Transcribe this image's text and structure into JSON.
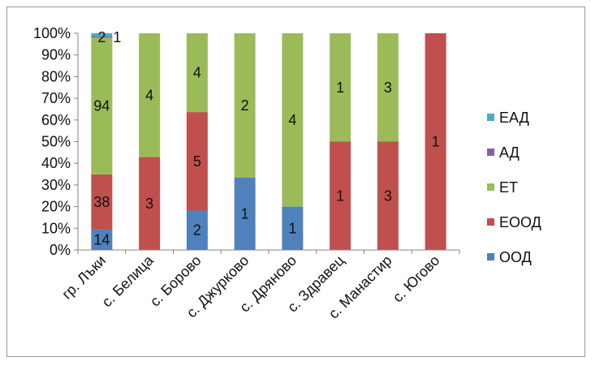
{
  "chart_data": {
    "type": "bar",
    "stacked": "percent",
    "categories": [
      "гр. Лъки",
      "с. Белица",
      "с. Борово",
      "с. Джурково",
      "с. Дряново",
      "с. Здравец",
      "с. Манастир",
      "с. Югово"
    ],
    "series": [
      {
        "name": "ООД",
        "color": "#4f81bd",
        "values": [
          14,
          0,
          2,
          1,
          1,
          0,
          0,
          0
        ]
      },
      {
        "name": "ЕООД",
        "color": "#c0504d",
        "values": [
          38,
          3,
          5,
          0,
          0,
          1,
          3,
          1
        ]
      },
      {
        "name": "ЕТ",
        "color": "#9bbb59",
        "values": [
          94,
          4,
          4,
          2,
          4,
          1,
          3,
          0
        ]
      },
      {
        "name": "АД",
        "color": "#8064a2",
        "values": [
          1,
          0,
          0,
          0,
          0,
          0,
          0,
          0
        ]
      },
      {
        "name": "ЕАД",
        "color": "#4bacc6",
        "values": [
          2,
          0,
          0,
          0,
          0,
          0,
          0,
          0
        ]
      }
    ],
    "data_labels": [
      {
        "category": 0,
        "series": 0,
        "text": "14"
      },
      {
        "category": 0,
        "series": 1,
        "text": "38"
      },
      {
        "category": 0,
        "series": 2,
        "text": "94"
      },
      {
        "category": 0,
        "series": 4,
        "text": "2"
      },
      {
        "category": 0,
        "series": 3,
        "text": "1"
      },
      {
        "category": 1,
        "series": 1,
        "text": "3"
      },
      {
        "category": 1,
        "series": 2,
        "text": "4"
      },
      {
        "category": 2,
        "series": 0,
        "text": "2"
      },
      {
        "category": 2,
        "series": 1,
        "text": "5"
      },
      {
        "category": 2,
        "series": 2,
        "text": "4"
      },
      {
        "category": 3,
        "series": 0,
        "text": "1"
      },
      {
        "category": 3,
        "series": 2,
        "text": "2"
      },
      {
        "category": 4,
        "series": 0,
        "text": "1"
      },
      {
        "category": 4,
        "series": 2,
        "text": "4"
      },
      {
        "category": 5,
        "series": 1,
        "text": "1"
      },
      {
        "category": 5,
        "series": 2,
        "text": "1"
      },
      {
        "category": 6,
        "series": 1,
        "text": "3"
      },
      {
        "category": 6,
        "series": 2,
        "text": "3"
      },
      {
        "category": 7,
        "series": 1,
        "text": "1"
      }
    ],
    "y_ticks": [
      "0%",
      "10%",
      "20%",
      "30%",
      "40%",
      "50%",
      "60%",
      "70%",
      "80%",
      "90%",
      "100%"
    ],
    "ylim": [
      0,
      100
    ],
    "grid": false,
    "legend_position": "right",
    "legend_order": [
      "ЕАД",
      "АД",
      "ЕТ",
      "ЕООД",
      "ООД"
    ],
    "title": "",
    "xlabel": "",
    "ylabel": ""
  }
}
